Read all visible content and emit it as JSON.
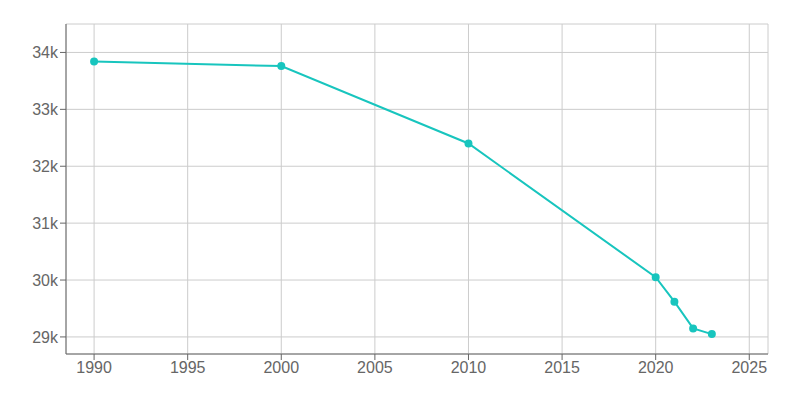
{
  "chart_data": {
    "type": "line",
    "x": [
      1990,
      2000,
      2010,
      2020,
      2021,
      2022,
      2023
    ],
    "values": [
      33840,
      33760,
      32400,
      30050,
      29620,
      29150,
      29050
    ],
    "color": "#18C5BE",
    "marker": "circle",
    "xlim": [
      1988.5,
      2026
    ],
    "ylim": [
      28700,
      34500
    ],
    "xticks": [
      1990,
      1995,
      2000,
      2005,
      2010,
      2015,
      2020,
      2025
    ],
    "yticks": [
      {
        "value": 29000,
        "label": "29k"
      },
      {
        "value": 30000,
        "label": "30k"
      },
      {
        "value": 31000,
        "label": "31k"
      },
      {
        "value": 32000,
        "label": "32k"
      },
      {
        "value": 33000,
        "label": "33k"
      },
      {
        "value": 34000,
        "label": "34k"
      }
    ],
    "grid": true
  }
}
